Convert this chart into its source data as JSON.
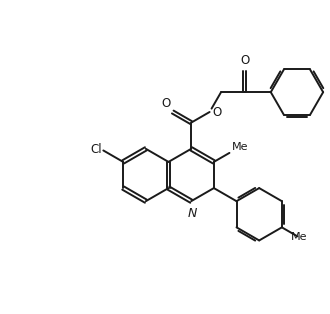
{
  "background_color": "#ffffff",
  "line_color": "#1a1a1a",
  "line_width": 1.4,
  "font_size": 8.5,
  "figsize": [
    3.3,
    3.14
  ],
  "dpi": 100,
  "xlim": [
    0,
    10
  ],
  "ylim": [
    0,
    9.5
  ]
}
